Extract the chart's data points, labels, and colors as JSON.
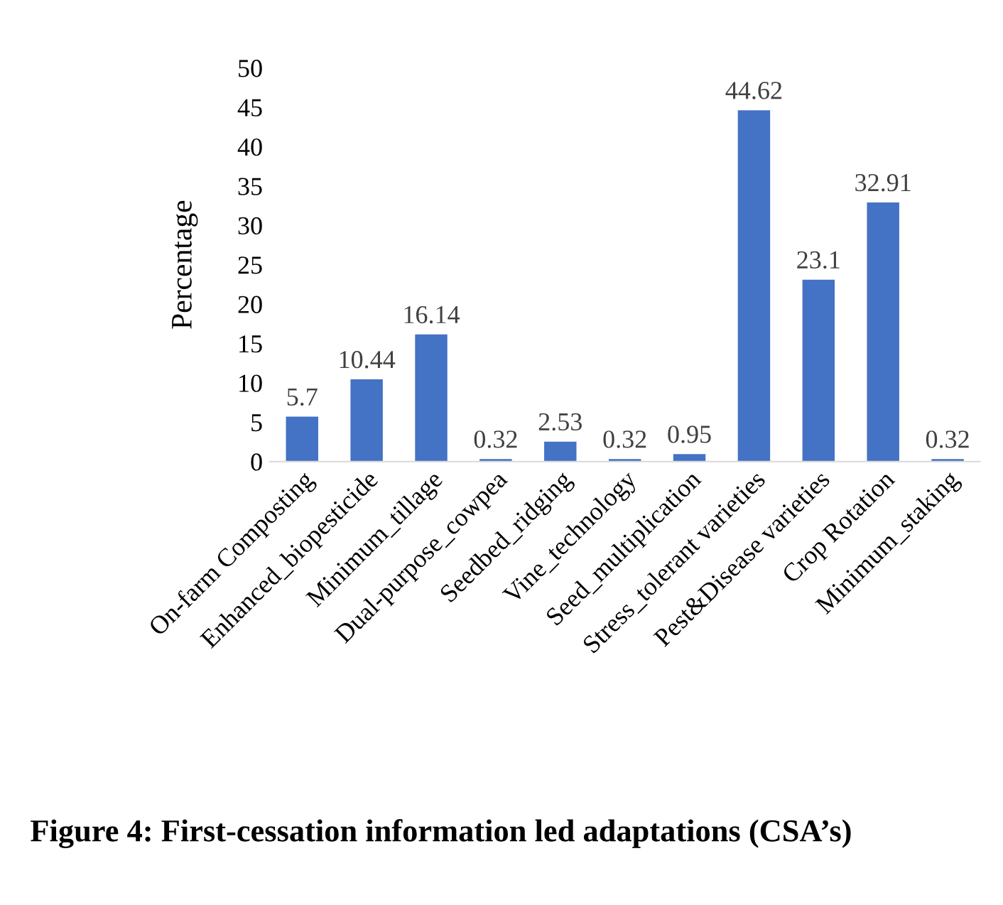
{
  "chart_data": {
    "type": "bar",
    "title": "Figure 4: First-cessation information led adaptations (CSA’s)",
    "ylabel": "Percentage",
    "categories": [
      "On-farm Composting",
      "Enhanced_biopesticide",
      "Minimum_tillage",
      "Dual-purpose_cowpea",
      "Seedbed_ridging",
      "Vine_technology",
      "Seed_multiplication",
      "Stress_tolerant varieties",
      "Pest&Disease varieties",
      "Crop Rotation",
      "Minimum_staking"
    ],
    "values": [
      5.7,
      10.44,
      16.14,
      0.32,
      2.53,
      0.32,
      0.95,
      44.62,
      23.1,
      32.91,
      0.32
    ],
    "color": "#4472c4",
    "ylim": [
      0,
      50
    ],
    "yticks": [
      0,
      5,
      10,
      15,
      20,
      25,
      30,
      35,
      40,
      45,
      50
    ],
    "data_labels": true,
    "grid": false,
    "legend": false
  }
}
